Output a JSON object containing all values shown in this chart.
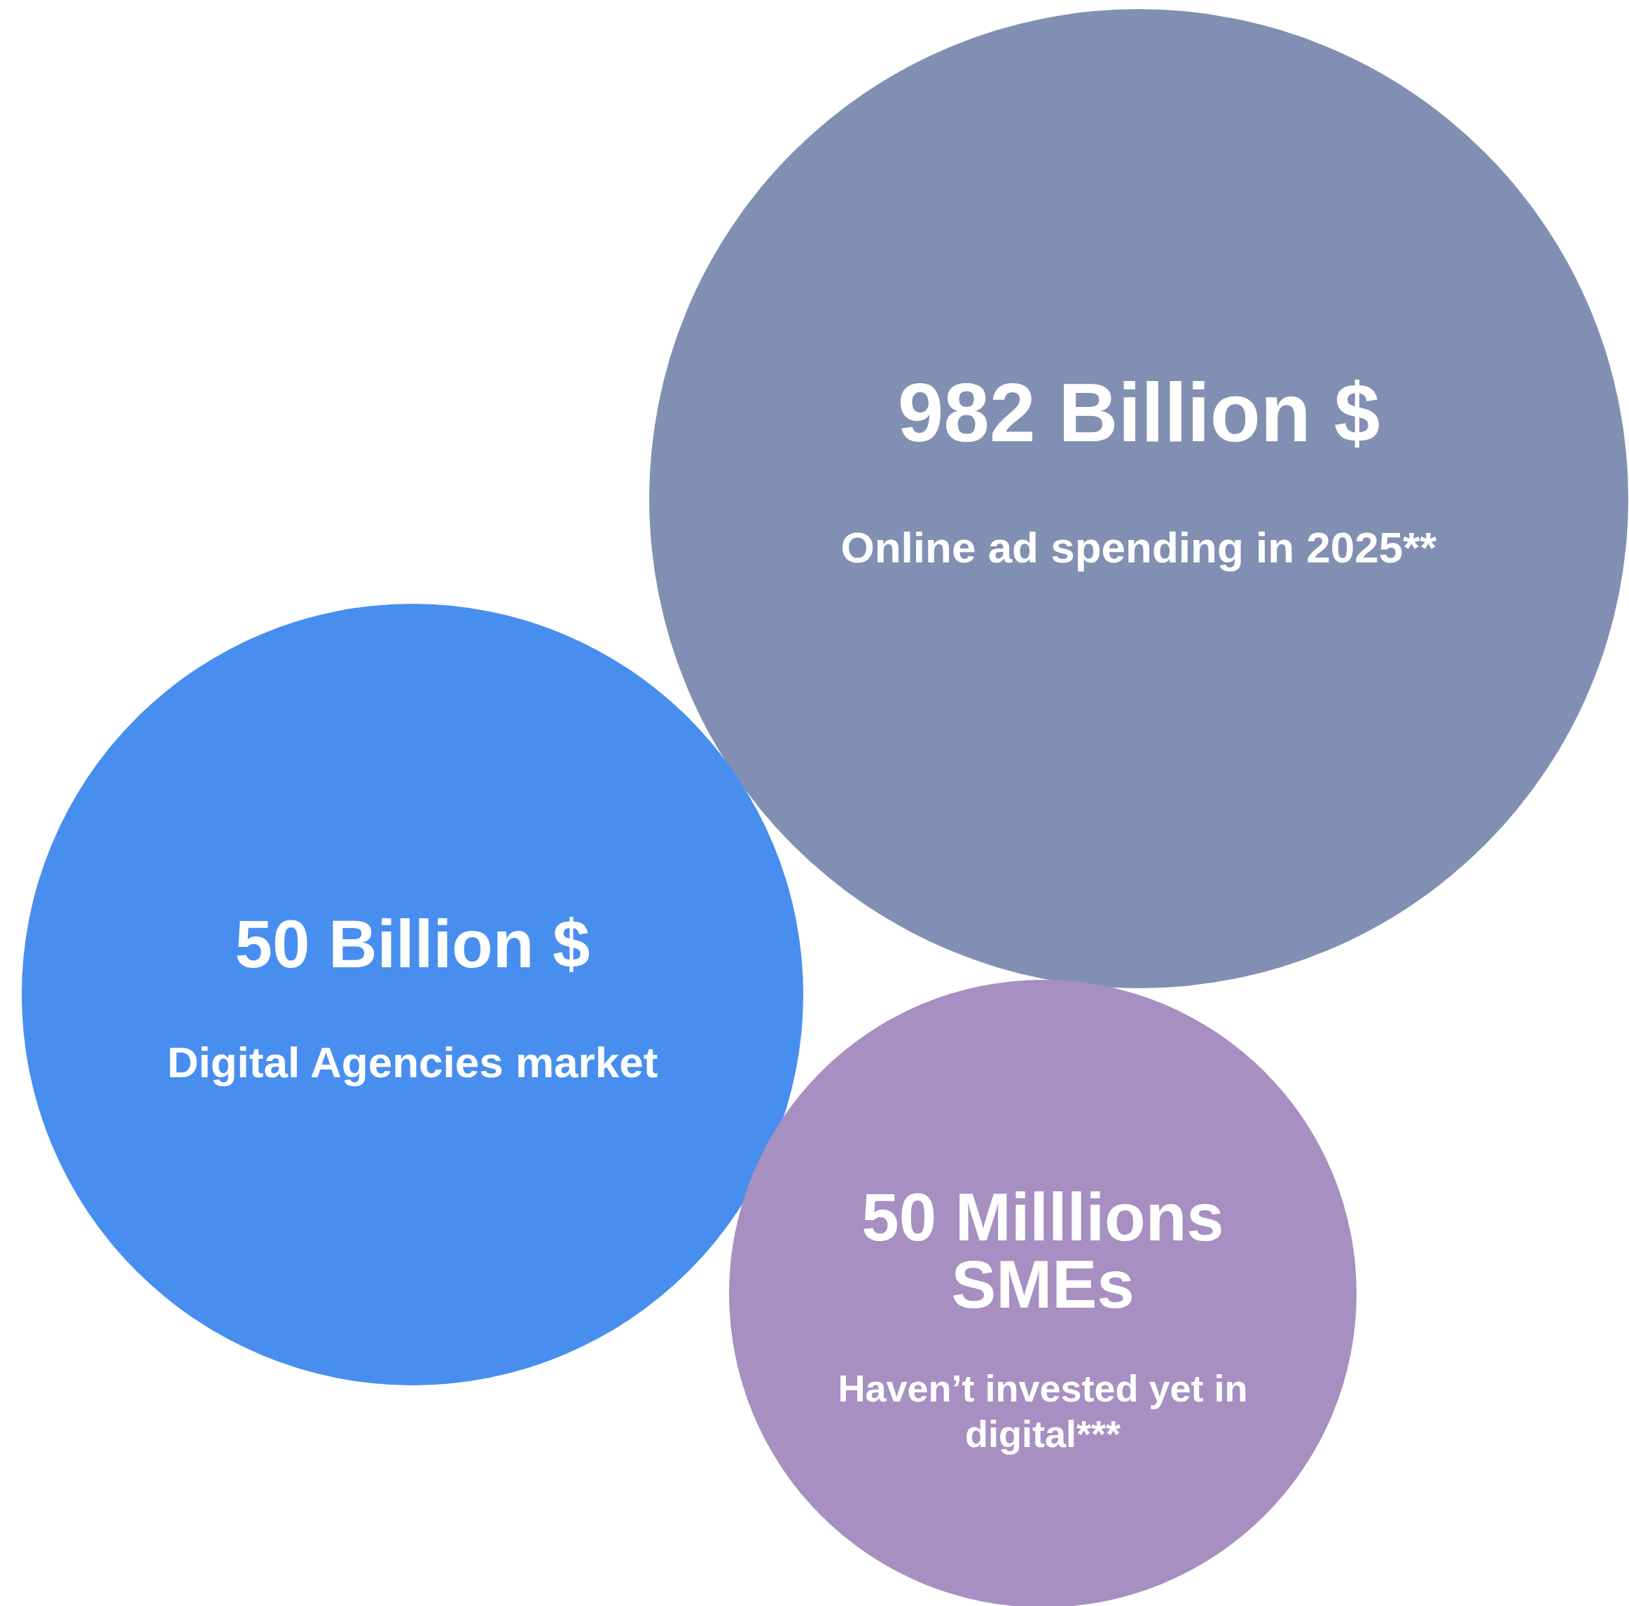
{
  "chart_data": {
    "type": "other",
    "categories": [
      "Online ad spending in 2025**",
      "Digital Agencies market",
      "Haven’t invested yet in digital***"
    ],
    "values": [
      982,
      50,
      50
    ],
    "value_labels": [
      "982 Billion $",
      "50 Billion $",
      "50 Milllions\nSMEs"
    ],
    "colors": [
      "#818fb3",
      "#488eef",
      "#a78fc1"
    ]
  }
}
